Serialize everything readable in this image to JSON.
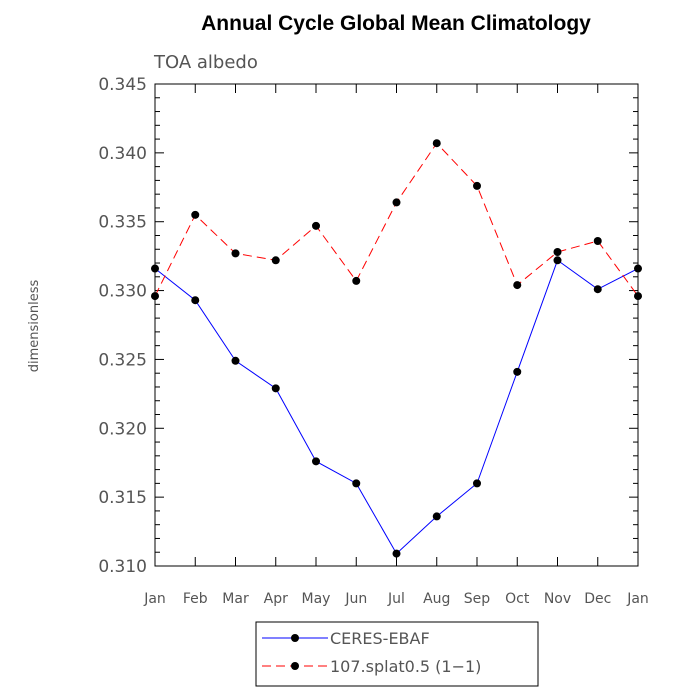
{
  "chart_data": {
    "type": "line",
    "title": "Annual Cycle Global Mean Climatology",
    "subtitle": "TOA albedo",
    "xlabel": "",
    "ylabel": "dimensionless",
    "categories": [
      "Jan",
      "Feb",
      "Mar",
      "Apr",
      "May",
      "Jun",
      "Jul",
      "Aug",
      "Sep",
      "Oct",
      "Nov",
      "Dec",
      "Jan"
    ],
    "ylim": [
      0.31,
      0.345
    ],
    "yticks": [
      "0.310",
      "0.315",
      "0.320",
      "0.325",
      "0.330",
      "0.335",
      "0.340",
      "0.345"
    ],
    "grid": false,
    "legend_position": "bottom-center",
    "series": [
      {
        "name": "CERES-EBAF",
        "color": "#0000ff",
        "dash": "solid",
        "marker": "filled-circle",
        "values": [
          0.3316,
          0.3293,
          0.3249,
          0.3229,
          0.3176,
          0.316,
          0.3109,
          0.3136,
          0.316,
          0.3241,
          0.3322,
          0.3301,
          0.3316
        ]
      },
      {
        "name": "107.splat0.5 (1−1)",
        "color": "#ff0000",
        "dash": "dashed",
        "marker": "filled-circle",
        "values": [
          0.3296,
          0.3355,
          0.3327,
          0.3322,
          0.3347,
          0.3307,
          0.3364,
          0.3407,
          0.3376,
          0.3304,
          0.3328,
          0.3336,
          0.3296
        ]
      }
    ]
  }
}
